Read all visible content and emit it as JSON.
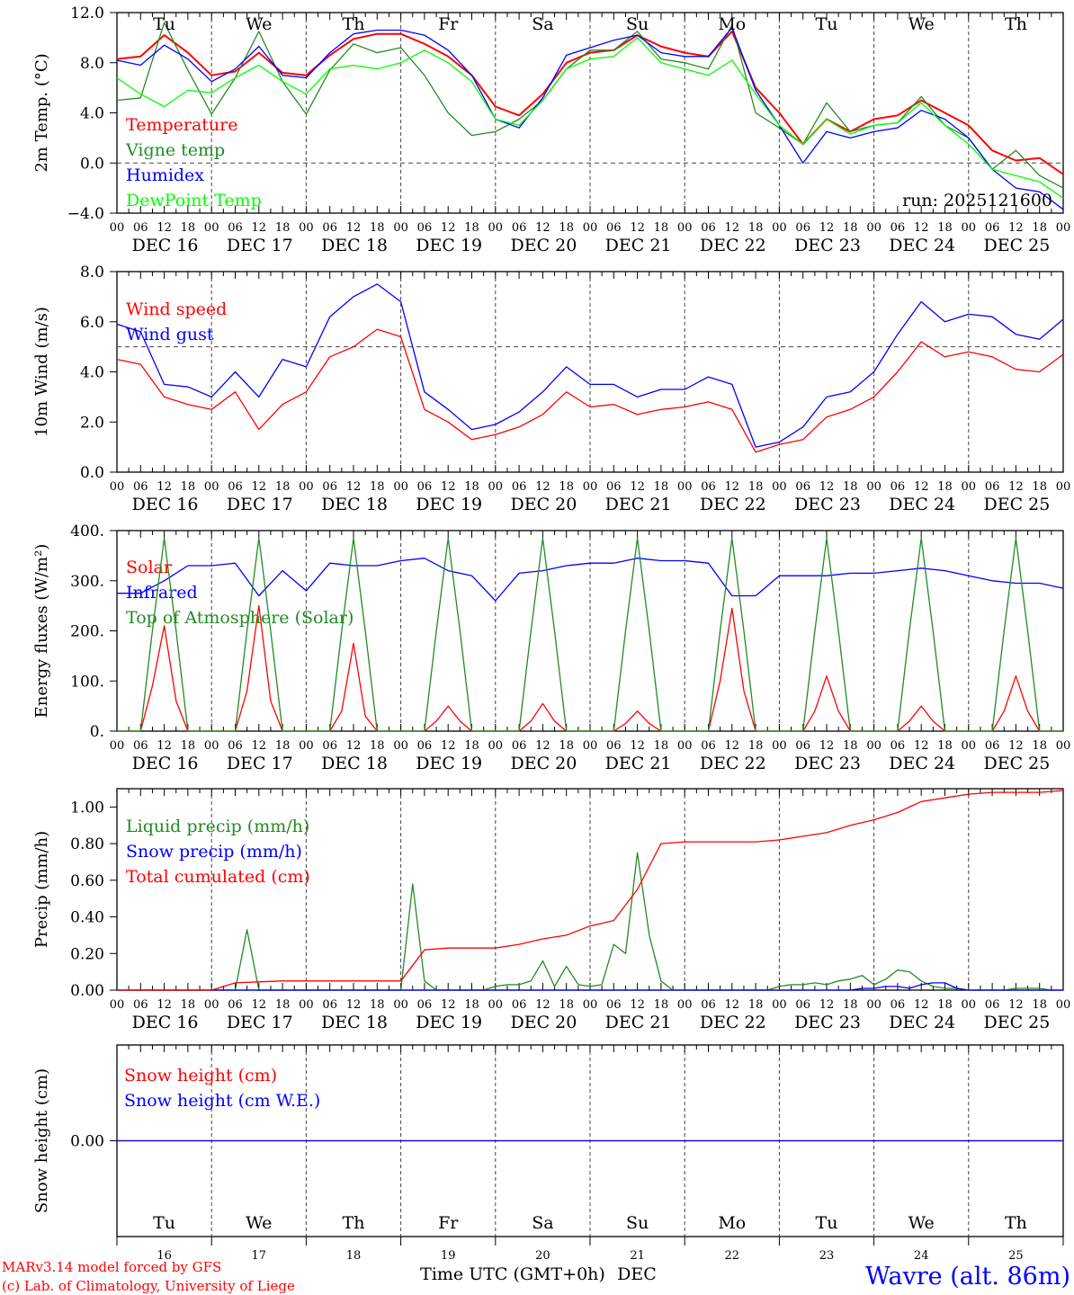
{
  "colors": {
    "red": "#ff0000",
    "green": "#228b22",
    "blue": "#0000ff",
    "lightgreen": "#00ff00",
    "weekend": "#ff0000"
  },
  "time_axis": {
    "start": "DEC 16 00 UTC",
    "step_hours": 6,
    "hour_labels": [
      "00",
      "06",
      "12",
      "18"
    ],
    "date_labels": [
      "DEC 16",
      "DEC 17",
      "DEC 18",
      "DEC 19",
      "DEC 20",
      "DEC 21",
      "DEC 22",
      "DEC 23",
      "DEC 24",
      "DEC 25"
    ],
    "day_names": [
      "Tu",
      "We",
      "Th",
      "Fr",
      "Sa",
      "Su",
      "Mo",
      "Tu",
      "We",
      "Th"
    ],
    "weekend_days": [
      "Sa",
      "Su"
    ],
    "day_numbers": [
      "16",
      "17",
      "18",
      "19",
      "20",
      "21",
      "22",
      "23",
      "24",
      "25"
    ]
  },
  "footer": {
    "credit_line1": "MARv3.14 model forced by GFS",
    "credit_line2": "(c) Lab. of Climatology, University of Liege",
    "xlabel": "Time UTC (GMT+0h)",
    "month": "DEC",
    "station": "Wavre (alt. 86m)"
  },
  "chart_data": [
    {
      "type": "line",
      "ylabel": "2m Temp. (°C)",
      "ylim": [
        -4,
        12
      ],
      "yticks": [
        "-4.0",
        "0.0",
        "4.0",
        "8.0",
        "12.0"
      ],
      "reference_line": 0,
      "annotation": "run: 2025121600",
      "series": [
        {
          "name": "Temperature",
          "color": "#ff0000",
          "values": [
            8.3,
            8.5,
            10.2,
            8.8,
            7.0,
            7.3,
            8.8,
            7.2,
            7.0,
            8.6,
            9.9,
            10.3,
            10.3,
            9.5,
            8.5,
            7.0,
            4.5,
            3.8,
            5.5,
            8.0,
            8.8,
            9.0,
            10.2,
            9.3,
            8.8,
            8.5,
            10.5,
            6.0,
            4.0,
            1.5,
            3.5,
            2.5,
            3.5,
            3.8,
            5.0,
            4.0,
            3.0,
            1.0,
            0.2,
            0.4,
            -0.9
          ]
        },
        {
          "name": "Vigne temp",
          "color": "#228b22",
          "values": [
            5.0,
            5.2,
            11.2,
            7.4,
            3.9,
            6.8,
            10.5,
            6.5,
            3.9,
            7.4,
            9.5,
            8.8,
            9.2,
            7.0,
            4.0,
            2.2,
            2.5,
            3.5,
            5.0,
            7.5,
            9.0,
            9.0,
            10.5,
            8.3,
            8.0,
            7.5,
            11.0,
            4.0,
            2.8,
            1.5,
            4.8,
            2.5,
            3.0,
            3.2,
            5.3,
            3.0,
            2.0,
            -0.5,
            1.0,
            -1.0,
            -2.0
          ]
        },
        {
          "name": "Humidex",
          "color": "#0000ff",
          "values": [
            8.2,
            7.8,
            9.4,
            8.3,
            6.5,
            7.5,
            9.3,
            7.0,
            6.8,
            8.8,
            10.3,
            10.6,
            10.6,
            10.2,
            9.0,
            7.0,
            3.5,
            2.8,
            5.2,
            8.6,
            9.2,
            9.8,
            10.2,
            8.8,
            8.5,
            8.5,
            10.8,
            5.8,
            3.0,
            0.0,
            2.5,
            2.0,
            2.5,
            2.8,
            4.2,
            3.5,
            2.0,
            -0.5,
            -2.0,
            -2.3,
            -3.7
          ]
        },
        {
          "name": "DewPoint Temp",
          "color": "#00ff00",
          "values": [
            6.8,
            5.5,
            4.5,
            5.8,
            5.6,
            6.8,
            7.8,
            6.5,
            5.5,
            7.5,
            7.8,
            7.5,
            8.0,
            9.0,
            8.0,
            6.5,
            3.5,
            3.0,
            5.0,
            7.5,
            8.3,
            8.5,
            10.0,
            8.0,
            7.5,
            7.0,
            8.2,
            5.5,
            3.0,
            1.5,
            3.5,
            2.3,
            3.0,
            3.2,
            4.8,
            3.0,
            1.5,
            -0.5,
            -1.0,
            -1.5,
            -2.8
          ]
        }
      ]
    },
    {
      "type": "line",
      "ylabel": "10m Wind (m/s)",
      "ylim": [
        0,
        8
      ],
      "yticks": [
        "0.0",
        "2.0",
        "4.0",
        "6.0",
        "8.0"
      ],
      "reference_line": 5,
      "series": [
        {
          "name": "Wind speed",
          "color": "#ff0000",
          "values": [
            4.5,
            4.3,
            3.0,
            2.7,
            2.5,
            3.2,
            1.7,
            2.7,
            3.2,
            4.6,
            5.0,
            5.7,
            5.4,
            2.5,
            2.0,
            1.3,
            1.5,
            1.8,
            2.3,
            3.2,
            2.6,
            2.7,
            2.3,
            2.5,
            2.6,
            2.8,
            2.5,
            0.8,
            1.1,
            1.3,
            2.2,
            2.5,
            3.0,
            4.0,
            5.2,
            4.6,
            4.8,
            4.6,
            4.1,
            4.0,
            4.7
          ]
        },
        {
          "name": "Wind gust",
          "color": "#0000ff",
          "values": [
            5.9,
            5.6,
            3.5,
            3.4,
            3.0,
            4.0,
            3.0,
            4.5,
            4.2,
            6.2,
            7.0,
            7.5,
            6.8,
            3.2,
            2.5,
            1.7,
            1.9,
            2.4,
            3.2,
            4.2,
            3.5,
            3.5,
            3.0,
            3.3,
            3.3,
            3.8,
            3.5,
            1.0,
            1.2,
            1.8,
            3.0,
            3.2,
            4.0,
            5.5,
            6.8,
            6.0,
            6.3,
            6.2,
            5.5,
            5.3,
            6.1
          ]
        }
      ]
    },
    {
      "type": "line",
      "ylabel": "Energy fluxes (W/m²)",
      "ylim": [
        0,
        400
      ],
      "yticks": [
        "0.",
        "100.",
        "200.",
        "300.",
        "400."
      ],
      "step_hours": 3,
      "series": [
        {
          "name": "Solar",
          "color": "#ff0000",
          "values": [
            0,
            0,
            0,
            90,
            210,
            60,
            0,
            0,
            0,
            0,
            0,
            80,
            250,
            60,
            0,
            0,
            0,
            0,
            0,
            40,
            175,
            30,
            0,
            0,
            0,
            0,
            0,
            20,
            50,
            20,
            0,
            0,
            0,
            0,
            0,
            20,
            55,
            20,
            0,
            0,
            0,
            0,
            0,
            15,
            40,
            15,
            0,
            0,
            0,
            0,
            0,
            100,
            245,
            80,
            0,
            0,
            0,
            0,
            0,
            40,
            110,
            40,
            0,
            0,
            0,
            0,
            0,
            20,
            50,
            20,
            0,
            0,
            0,
            0,
            0,
            40,
            110,
            40,
            0,
            0,
            0
          ]
        },
        {
          "name": "Infrared",
          "color": "#0000ff",
          "step_hours": 6,
          "values": [
            275,
            275,
            300,
            330,
            330,
            335,
            270,
            320,
            280,
            335,
            330,
            330,
            340,
            345,
            320,
            310,
            260,
            315,
            320,
            330,
            335,
            335,
            345,
            340,
            340,
            335,
            270,
            270,
            310,
            310,
            310,
            315,
            315,
            320,
            325,
            320,
            310,
            300,
            295,
            295,
            285
          ]
        },
        {
          "name": "Top of Atmosphere (Solar)",
          "color": "#228b22",
          "values": [
            0,
            0,
            0,
            200,
            385,
            200,
            0,
            0,
            0,
            0,
            0,
            200,
            385,
            200,
            0,
            0,
            0,
            0,
            0,
            200,
            385,
            200,
            0,
            0,
            0,
            0,
            0,
            200,
            385,
            200,
            0,
            0,
            0,
            0,
            0,
            200,
            385,
            200,
            0,
            0,
            0,
            0,
            0,
            200,
            385,
            200,
            0,
            0,
            0,
            0,
            0,
            200,
            385,
            200,
            0,
            0,
            0,
            0,
            0,
            200,
            385,
            200,
            0,
            0,
            0,
            0,
            0,
            200,
            385,
            200,
            0,
            0,
            0,
            0,
            0,
            200,
            385,
            200,
            0,
            0,
            0
          ]
        }
      ]
    },
    {
      "type": "line",
      "ylabel": "Precip (mm/h)",
      "ylim": [
        0,
        1.1
      ],
      "yticks": [
        "0.00",
        "0.20",
        "0.40",
        "0.60",
        "0.80",
        "1.00"
      ],
      "step_hours": 3,
      "series": [
        {
          "name": "Liquid precip (mm/h)",
          "color": "#228b22",
          "values": [
            0,
            0,
            0,
            0,
            0,
            0,
            0,
            0,
            0,
            0,
            0,
            0.33,
            0,
            0,
            0,
            0,
            0,
            0,
            0,
            0,
            0,
            0,
            0,
            0,
            0,
            0.58,
            0.05,
            0,
            0,
            0,
            0,
            0,
            0.02,
            0.03,
            0.03,
            0.05,
            0.16,
            0.02,
            0.13,
            0.03,
            0.02,
            0.03,
            0.25,
            0.2,
            0.75,
            0.3,
            0.05,
            0,
            0,
            0,
            0,
            0,
            0,
            0,
            0,
            0,
            0.02,
            0.03,
            0.03,
            0.04,
            0.03,
            0.05,
            0.06,
            0.08,
            0.03,
            0.06,
            0.11,
            0.1,
            0.05,
            0.02,
            0.01,
            0.01,
            0,
            0,
            0,
            0,
            0.01,
            0.01,
            0.01,
            0,
            0
          ]
        },
        {
          "name": "Snow precip (mm/h)",
          "color": "#0000ff",
          "values": [
            0,
            0,
            0,
            0,
            0,
            0,
            0,
            0,
            0,
            0,
            0,
            0,
            0,
            0,
            0,
            0,
            0,
            0,
            0,
            0,
            0,
            0,
            0,
            0,
            0,
            0,
            0,
            0,
            0,
            0,
            0,
            0,
            0,
            0,
            0,
            0,
            0,
            0,
            0,
            0,
            0,
            0,
            0,
            0,
            0,
            0,
            0,
            0,
            0,
            0,
            0,
            0,
            0,
            0,
            0,
            0,
            0,
            0,
            0,
            0,
            0,
            0,
            0,
            0.01,
            0.01,
            0.02,
            0.02,
            0.01,
            0.03,
            0.04,
            0.04,
            0.01,
            0,
            0,
            0,
            0,
            0,
            0,
            0,
            0,
            0
          ]
        },
        {
          "name": "Total cumulated (cm)",
          "color": "#ff0000",
          "step_hours": 6,
          "values": [
            0,
            0,
            0,
            0,
            0,
            0.04,
            0.045,
            0.05,
            0.05,
            0.05,
            0.05,
            0.05,
            0.05,
            0.22,
            0.23,
            0.23,
            0.23,
            0.25,
            0.28,
            0.3,
            0.35,
            0.38,
            0.55,
            0.8,
            0.81,
            0.81,
            0.81,
            0.81,
            0.82,
            0.84,
            0.86,
            0.9,
            0.93,
            0.97,
            1.03,
            1.05,
            1.07,
            1.08,
            1.08,
            1.08,
            1.09
          ]
        }
      ]
    },
    {
      "type": "line",
      "ylabel": "Snow height (cm)",
      "ylim": [
        -1,
        1
      ],
      "yticks": [
        "0.00"
      ],
      "series": [
        {
          "name": "Snow height (cm)",
          "color": "#ff0000",
          "values": [
            0,
            0
          ]
        },
        {
          "name": "Snow height (cm W.E.)",
          "color": "#0000ff",
          "values": [
            0,
            0
          ]
        }
      ]
    }
  ]
}
